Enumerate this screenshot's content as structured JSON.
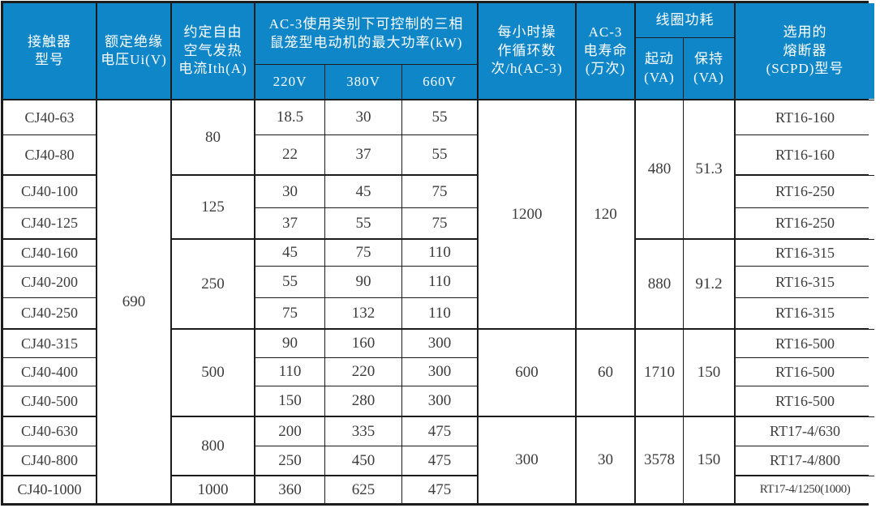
{
  "colors": {
    "header_bg": "#0f86c7",
    "header_text": "#ffffff",
    "body_text": "#3c3c3c",
    "grid_line": "#1c1c1c"
  },
  "header": {
    "model": "接触器\n型号",
    "rated_voltage": "额定绝缘\n电压Ui(V)",
    "thermal_current": "约定自由\n空气发热\n电流Ith(A)",
    "max_power_group": "AC-3使用类别下可控制的三相\n鼠笼型电动机的最大功率(kW)",
    "v220": "220V",
    "v380": "380V",
    "v660": "660V",
    "ops_per_hour": "每小时操\n作循环数\n次/h(AC-3)",
    "electrical_life": "AC-3\n电寿命\n(万次)",
    "coil_power_group": "线圈功耗",
    "coil_start": "起动\n(VA)",
    "coil_hold": "保持\n(VA)",
    "fuse": "选用的\n熔断器\n(SCPD)型号"
  },
  "body": {
    "models": [
      "CJ40-63",
      "CJ40-80",
      "CJ40-100",
      "CJ40-125",
      "CJ40-160",
      "CJ40-200",
      "CJ40-250",
      "CJ40-315",
      "CJ40-400",
      "CJ40-500",
      "CJ40-630",
      "CJ40-800",
      "CJ40-1000"
    ],
    "rated_voltage": "690",
    "thermal_current": [
      "80",
      "125",
      "250",
      "500",
      "800",
      "1000"
    ],
    "p220": [
      "18.5",
      "22",
      "30",
      "37",
      "45",
      "55",
      "75",
      "90",
      "110",
      "150",
      "200",
      "250",
      "360"
    ],
    "p380": [
      "30",
      "37",
      "45",
      "55",
      "75",
      "90",
      "132",
      "160",
      "220",
      "280",
      "335",
      "450",
      "625"
    ],
    "p660": [
      "55",
      "55",
      "75",
      "75",
      "110",
      "110",
      "110",
      "300",
      "300",
      "300",
      "475",
      "475",
      "475"
    ],
    "ops": [
      "1200",
      "600",
      "300"
    ],
    "life": [
      "120",
      "60",
      "30"
    ],
    "coil_start": [
      "480",
      "880",
      "1710",
      "3578"
    ],
    "coil_hold": [
      "51.3",
      "91.2",
      "150",
      "150"
    ],
    "fuses": [
      "RT16-160",
      "RT16-160",
      "RT16-250",
      "RT16-250",
      "RT16-315",
      "RT16-315",
      "RT16-315",
      "RT16-500",
      "RT16-500",
      "RT16-500",
      "RT17-4/630",
      "RT17-4/800",
      "RT17-4/1250(1000)"
    ]
  }
}
